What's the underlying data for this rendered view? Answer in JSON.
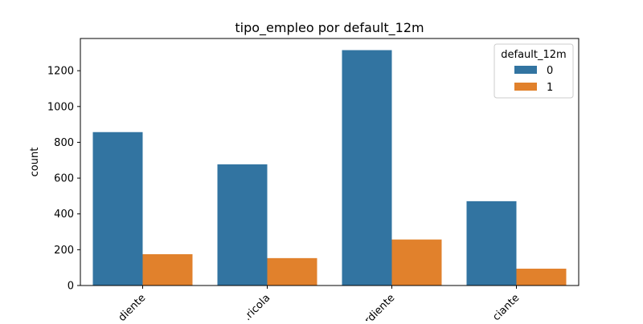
{
  "chart_data": {
    "type": "bar",
    "title": "tipo_empleo por default_12m",
    "xlabel": "",
    "ylabel": "count",
    "categories": [
      "…diente",
      "…ricola",
      "…rdiente",
      "…ciante"
    ],
    "series": [
      {
        "name": "0",
        "values": [
          857,
          677,
          1315,
          471
        ],
        "color": "#3274a1"
      },
      {
        "name": "1",
        "values": [
          175,
          153,
          257,
          94
        ],
        "color": "#e1812c"
      }
    ],
    "ylim": [
      0,
      1380
    ],
    "yticks": [
      0,
      200,
      400,
      600,
      800,
      1000,
      1200
    ],
    "legend": {
      "title": "default_12m",
      "placement": "top-right"
    },
    "grid": false
  }
}
